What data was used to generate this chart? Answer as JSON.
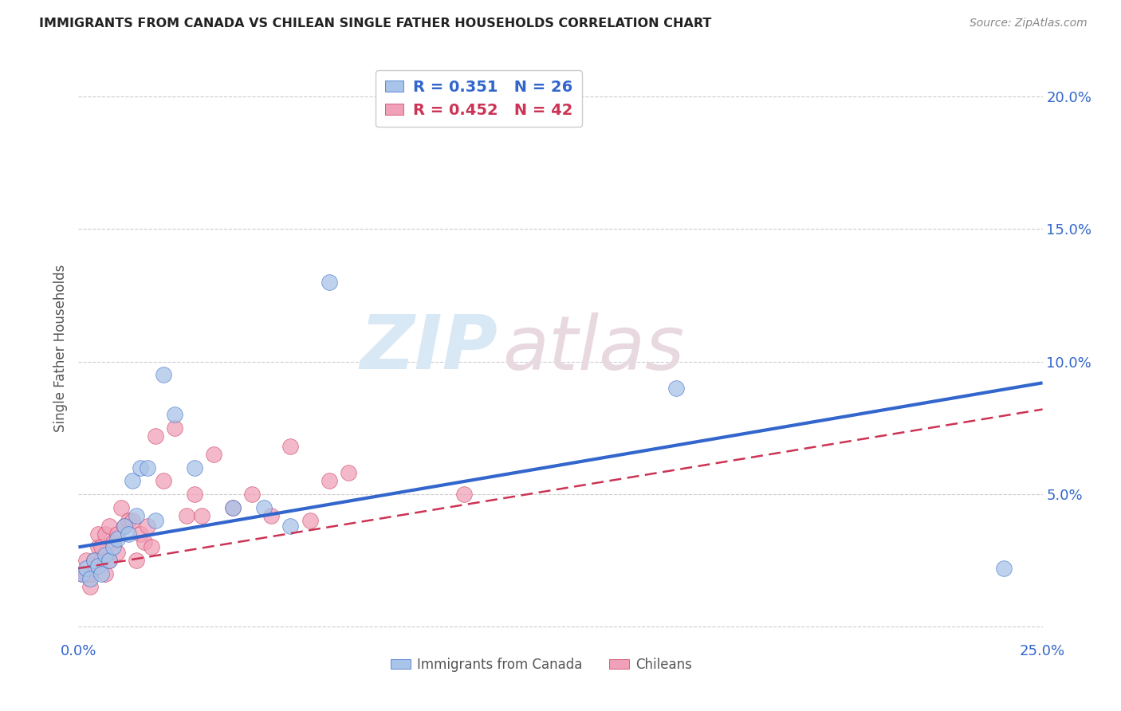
{
  "title": "IMMIGRANTS FROM CANADA VS CHILEAN SINGLE FATHER HOUSEHOLDS CORRELATION CHART",
  "source": "Source: ZipAtlas.com",
  "ylabel": "Single Father Households",
  "xlim": [
    0.0,
    0.25
  ],
  "ylim": [
    -0.005,
    0.215
  ],
  "xtick_positions": [
    0.0,
    0.05,
    0.1,
    0.15,
    0.2,
    0.25
  ],
  "xtick_labels": [
    "0.0%",
    "",
    "",
    "",
    "",
    "25.0%"
  ],
  "ytick_positions": [
    0.0,
    0.05,
    0.1,
    0.15,
    0.2
  ],
  "ytick_labels": [
    "",
    "5.0%",
    "10.0%",
    "15.0%",
    "20.0%"
  ],
  "blue_label": "Immigrants from Canada",
  "pink_label": "Chileans",
  "blue_R": "0.351",
  "blue_N": "26",
  "pink_R": "0.452",
  "pink_N": "42",
  "blue_color": "#a8c4e8",
  "pink_color": "#f0a0b8",
  "blue_line_color": "#3366cc",
  "pink_line_color": "#cc3355",
  "watermark_zip": "ZIP",
  "watermark_atlas": "atlas",
  "blue_line_start_y": 0.03,
  "blue_line_end_y": 0.092,
  "pink_line_start_y": 0.022,
  "pink_line_end_y": 0.082,
  "blue_scatter_x": [
    0.001,
    0.002,
    0.003,
    0.004,
    0.005,
    0.006,
    0.007,
    0.008,
    0.009,
    0.01,
    0.012,
    0.013,
    0.014,
    0.015,
    0.016,
    0.018,
    0.02,
    0.022,
    0.025,
    0.03,
    0.04,
    0.048,
    0.055,
    0.065,
    0.155,
    0.24
  ],
  "blue_scatter_y": [
    0.02,
    0.022,
    0.018,
    0.025,
    0.023,
    0.02,
    0.027,
    0.025,
    0.03,
    0.033,
    0.038,
    0.035,
    0.055,
    0.042,
    0.06,
    0.06,
    0.04,
    0.095,
    0.08,
    0.06,
    0.045,
    0.045,
    0.038,
    0.13,
    0.09,
    0.022
  ],
  "pink_scatter_x": [
    0.001,
    0.002,
    0.002,
    0.003,
    0.003,
    0.004,
    0.004,
    0.005,
    0.005,
    0.006,
    0.006,
    0.007,
    0.007,
    0.008,
    0.008,
    0.009,
    0.01,
    0.01,
    0.011,
    0.012,
    0.013,
    0.014,
    0.015,
    0.016,
    0.017,
    0.018,
    0.019,
    0.02,
    0.022,
    0.025,
    0.028,
    0.03,
    0.032,
    0.035,
    0.04,
    0.045,
    0.05,
    0.055,
    0.06,
    0.065,
    0.07,
    0.1
  ],
  "pink_scatter_y": [
    0.02,
    0.02,
    0.025,
    0.015,
    0.02,
    0.025,
    0.022,
    0.03,
    0.035,
    0.025,
    0.03,
    0.02,
    0.035,
    0.025,
    0.038,
    0.032,
    0.028,
    0.035,
    0.045,
    0.038,
    0.04,
    0.04,
    0.025,
    0.035,
    0.032,
    0.038,
    0.03,
    0.072,
    0.055,
    0.075,
    0.042,
    0.05,
    0.042,
    0.065,
    0.045,
    0.05,
    0.042,
    0.068,
    0.04,
    0.055,
    0.058,
    0.05
  ]
}
